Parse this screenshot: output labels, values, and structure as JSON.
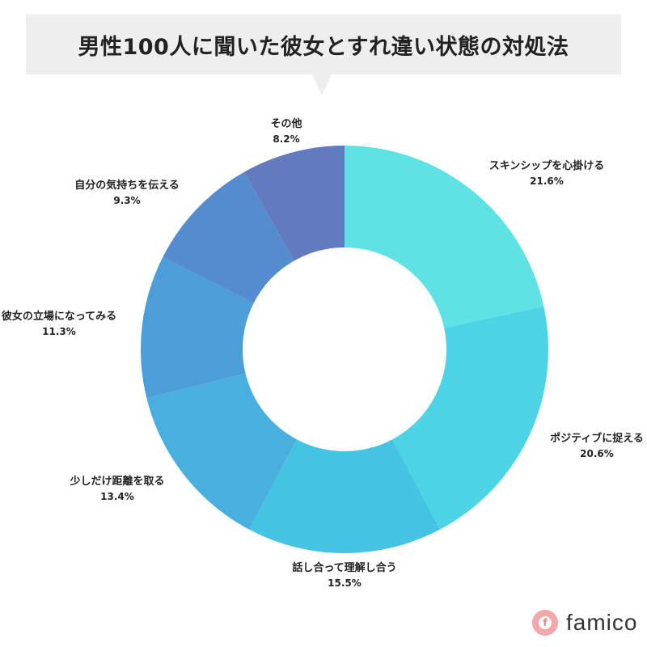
{
  "title": "男性100人に聞いた彼女とすれ違い状態の対処法",
  "brand": {
    "name": "famico",
    "icon": "famico-logo-icon"
  },
  "chart_data": {
    "type": "pie",
    "donut": true,
    "categories": [
      "スキンシップを心掛ける",
      "ポジティブに捉える",
      "話し合って理解し合う",
      "少しだけ距離を取る",
      "彼女の立場になってみる",
      "自分の気持ちを伝える",
      "その他"
    ],
    "values": [
      21.6,
      20.6,
      15.5,
      13.4,
      11.3,
      9.3,
      8.2
    ],
    "labels": [
      "21.6%",
      "20.6%",
      "15.5%",
      "13.4%",
      "11.3%",
      "9.3%",
      "8.2%"
    ],
    "colors": [
      "#5ee2e6",
      "#4cd3e4",
      "#45c3e3",
      "#48afdf",
      "#4c9ed8",
      "#558ccf",
      "#617ac0"
    ]
  }
}
